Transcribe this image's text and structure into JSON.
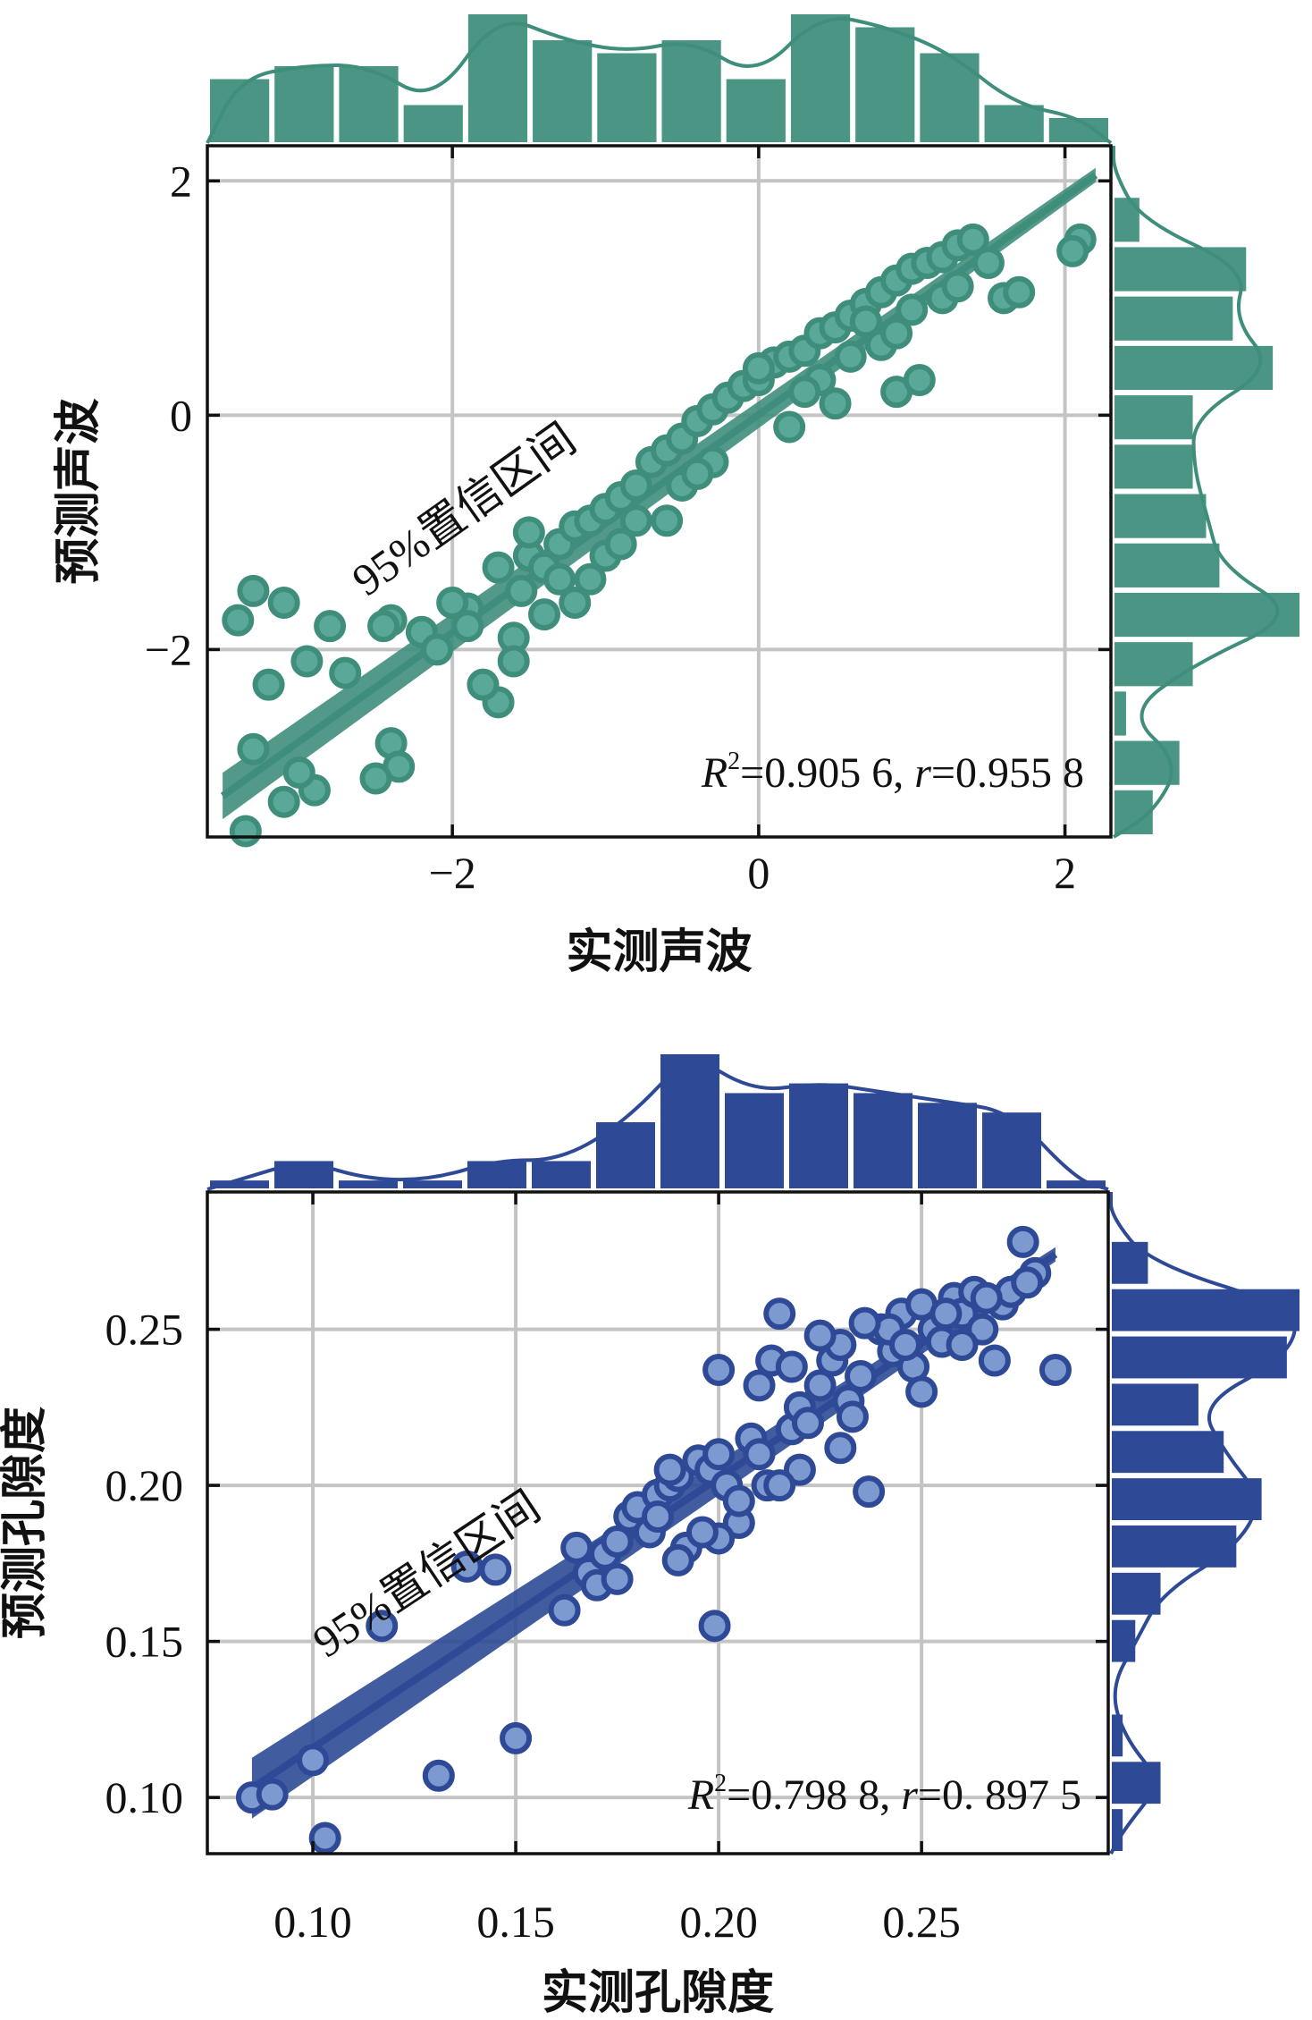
{
  "chart_data": [
    {
      "type": "scatter",
      "xlabel": "实测声波",
      "ylabel": "预测声波",
      "xlim": [
        -3.6,
        2.3
      ],
      "ylim": [
        -3.6,
        2.3
      ],
      "xticks": [
        "−2",
        "0",
        "2"
      ],
      "yticks": [
        "−2",
        "0",
        "2"
      ],
      "grid": true,
      "marginal_histograms": true,
      "annotation": "95%置信区间",
      "stats_text": {
        "r2_label": "R",
        "r2_sup": "2",
        "r2_value": "=0.905 6, ",
        "r_label": "r",
        "r_value": "=0.955 8"
      },
      "regression_line": {
        "x": [
          -3.5,
          2.2
        ],
        "y": [
          -3.25,
          2.05
        ]
      },
      "colors": {
        "marker_fill": "#5aa898",
        "marker_edge": "#3f8e7c",
        "line": "#3f8e7c",
        "histogram": "#4a9583"
      },
      "points_x": [
        -3.4,
        -3.3,
        -3.1,
        -2.95,
        -2.7,
        -3.2,
        -3.3,
        -2.9,
        -3.0,
        -3.1,
        -3.35,
        -2.4,
        -2.35,
        -2.4,
        -2.2,
        -2.1,
        -1.9,
        -1.7,
        -1.6,
        -1.55,
        -1.5,
        -1.4,
        -1.3,
        -1.2,
        -1.1,
        -1.0,
        -0.9,
        -0.8,
        -0.7,
        -0.6,
        -0.5,
        -0.4,
        -0.3,
        -0.2,
        -0.1,
        0.0,
        0.1,
        0.2,
        0.3,
        0.4,
        0.5,
        0.6,
        0.7,
        0.8,
        0.9,
        1.0,
        1.1,
        1.2,
        1.3,
        1.4,
        1.6,
        1.7,
        2.1,
        2.05,
        0.9,
        1.05,
        -1.7,
        -1.5,
        -1.3,
        -1.0,
        -0.8,
        -0.5,
        -0.3,
        0.2,
        0.4,
        0.6,
        0.8,
        1.0,
        1.2,
        1.5,
        -0.9,
        -1.1,
        -0.4,
        0.0,
        0.3,
        0.7,
        -1.9,
        -2.0,
        -1.4,
        -0.6,
        0.5,
        0.9,
        1.3,
        -2.8,
        -2.5,
        -2.45,
        -1.8,
        -1.6,
        -1.2
      ],
      "points_y": [
        -1.75,
        -1.5,
        -1.6,
        -2.1,
        -2.2,
        -2.3,
        -2.85,
        -3.2,
        -3.05,
        -3.3,
        -3.55,
        -2.8,
        -3.0,
        -1.75,
        -1.85,
        -2.0,
        -1.65,
        -2.45,
        -1.9,
        -1.5,
        -1.2,
        -1.3,
        -1.1,
        -0.95,
        -0.9,
        -0.8,
        -0.7,
        -0.6,
        -0.4,
        -0.3,
        -0.2,
        -0.05,
        0.05,
        0.15,
        0.25,
        0.3,
        0.45,
        0.5,
        0.55,
        0.7,
        0.75,
        0.85,
        0.95,
        1.05,
        1.15,
        1.25,
        1.3,
        1.35,
        1.45,
        1.5,
        1.0,
        1.05,
        1.5,
        1.4,
        0.2,
        0.3,
        -1.3,
        -1.0,
        -1.4,
        -1.2,
        -0.9,
        -0.6,
        -0.4,
        -0.1,
        0.3,
        0.5,
        0.6,
        0.9,
        1.0,
        1.3,
        -1.1,
        -1.4,
        -0.5,
        0.4,
        0.2,
        0.8,
        -1.8,
        -1.6,
        -1.7,
        -0.9,
        0.1,
        0.7,
        1.1,
        -1.8,
        -3.1,
        -1.8,
        -2.3,
        -2.1,
        -1.6
      ]
    },
    {
      "type": "scatter",
      "xlabel": "实测孔隙度",
      "ylabel": "预测孔隙度",
      "xlim": [
        0.074,
        0.296
      ],
      "ylim": [
        0.082,
        0.294
      ],
      "xticks": [
        "0.10",
        "0.15",
        "0.20",
        "0.25"
      ],
      "yticks": [
        "0.10",
        "0.15",
        "0.20",
        "0.25"
      ],
      "grid": true,
      "marginal_histograms": true,
      "annotation": "95%置信区间",
      "stats_text": {
        "r2_label": "R",
        "r2_sup": "2",
        "r2_value": "=0.798 8, ",
        "r_label": "r",
        "r_value": "=0. 897 5"
      },
      "regression_line": {
        "x": [
          0.085,
          0.283
        ],
        "y": [
          0.103,
          0.274
        ]
      },
      "colors": {
        "marker_fill": "#7d9ad0",
        "marker_edge": "#2e4a96",
        "line": "#2e4a96",
        "histogram": "#2e4a96"
      },
      "points_x": [
        0.085,
        0.09,
        0.1,
        0.103,
        0.117,
        0.131,
        0.138,
        0.145,
        0.15,
        0.162,
        0.165,
        0.168,
        0.17,
        0.172,
        0.175,
        0.178,
        0.18,
        0.183,
        0.185,
        0.188,
        0.19,
        0.192,
        0.195,
        0.198,
        0.2,
        0.202,
        0.205,
        0.208,
        0.21,
        0.212,
        0.215,
        0.218,
        0.22,
        0.222,
        0.225,
        0.228,
        0.23,
        0.232,
        0.235,
        0.237,
        0.24,
        0.243,
        0.245,
        0.248,
        0.25,
        0.253,
        0.255,
        0.258,
        0.26,
        0.263,
        0.265,
        0.268,
        0.27,
        0.272,
        0.275,
        0.278,
        0.283,
        0.199,
        0.19,
        0.2,
        0.22,
        0.23,
        0.215,
        0.242,
        0.205,
        0.196,
        0.21,
        0.225,
        0.25,
        0.26,
        0.185,
        0.175,
        0.188,
        0.2,
        0.213,
        0.236,
        0.246,
        0.256,
        0.266,
        0.276,
        0.233,
        0.218
      ],
      "points_y": [
        0.1,
        0.101,
        0.112,
        0.087,
        0.155,
        0.107,
        0.174,
        0.173,
        0.119,
        0.16,
        0.18,
        0.172,
        0.168,
        0.178,
        0.17,
        0.19,
        0.193,
        0.185,
        0.197,
        0.2,
        0.203,
        0.18,
        0.208,
        0.205,
        0.237,
        0.2,
        0.188,
        0.215,
        0.21,
        0.2,
        0.255,
        0.218,
        0.225,
        0.22,
        0.232,
        0.24,
        0.245,
        0.227,
        0.235,
        0.198,
        0.25,
        0.243,
        0.255,
        0.238,
        0.258,
        0.25,
        0.246,
        0.26,
        0.255,
        0.262,
        0.25,
        0.24,
        0.258,
        0.262,
        0.278,
        0.268,
        0.237,
        0.155,
        0.176,
        0.183,
        0.205,
        0.212,
        0.2,
        0.25,
        0.195,
        0.185,
        0.232,
        0.248,
        0.23,
        0.245,
        0.19,
        0.182,
        0.205,
        0.21,
        0.24,
        0.252,
        0.245,
        0.255,
        0.26,
        0.265,
        0.222,
        0.238
      ]
    }
  ]
}
